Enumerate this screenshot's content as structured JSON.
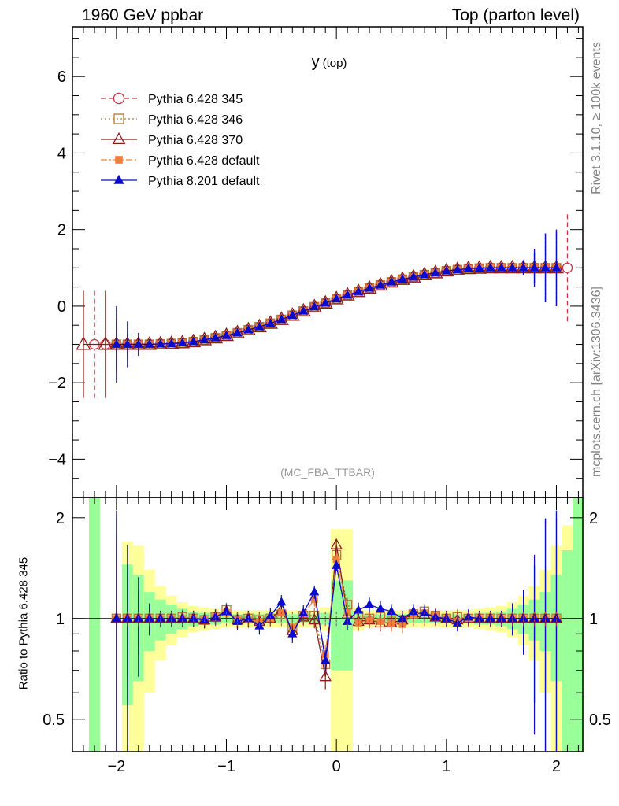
{
  "header": {
    "left": "1960 GeV ppbar",
    "right": "Top (parton level)"
  },
  "side_labels": {
    "rivet": "Rivet 3.1.10, ≥ 100k events",
    "mcplots": "mcplots.cern.ch [arXiv:1306.3436]"
  },
  "chart_data": [
    {
      "type": "line",
      "title": "y (top)",
      "analysis": "(MC_FBA_TTBAR)",
      "xlabel": "",
      "ylabel": "",
      "xlim": [
        -2.4,
        2.24
      ],
      "ylim": [
        -5,
        7.3
      ],
      "x_ticks": [
        -2,
        -1,
        0,
        1,
        2
      ],
      "x_tick_labels": [
        "−2",
        "−1",
        "0",
        "1",
        "2"
      ],
      "y_ticks": [
        -4,
        -2,
        0,
        2,
        4,
        6
      ],
      "y_tick_labels": [
        "−4",
        "−2",
        "0",
        "2",
        "4",
        "6"
      ],
      "legend_position": "top-left",
      "x": [
        -2.3,
        -2.2,
        -2.1,
        -2.0,
        -1.9,
        -1.8,
        -1.7,
        -1.6,
        -1.5,
        -1.4,
        -1.3,
        -1.2,
        -1.1,
        -1.0,
        -0.9,
        -0.8,
        -0.7,
        -0.6,
        -0.5,
        -0.4,
        -0.3,
        -0.2,
        -0.1,
        0.0,
        0.1,
        0.2,
        0.3,
        0.4,
        0.5,
        0.6,
        0.7,
        0.8,
        0.9,
        1.0,
        1.1,
        1.2,
        1.3,
        1.4,
        1.5,
        1.6,
        1.7,
        1.8,
        1.9,
        2.0,
        2.1
      ],
      "series": [
        {
          "name": "Pythia 6.428 345",
          "color": "#cc3344",
          "marker": "open-circle",
          "line": "dashed",
          "values": [
            null,
            -1.0,
            -1.0,
            -1.0,
            -1.0,
            -1.0,
            -1.0,
            -0.99,
            -0.98,
            -0.96,
            -0.93,
            -0.88,
            -0.83,
            -0.77,
            -0.7,
            -0.62,
            -0.54,
            -0.45,
            -0.35,
            -0.24,
            -0.13,
            -0.02,
            0.08,
            0.19,
            0.29,
            0.38,
            0.47,
            0.55,
            0.63,
            0.7,
            0.76,
            0.82,
            0.87,
            0.92,
            0.95,
            0.98,
            0.99,
            1.0,
            1.0,
            1.0,
            1.0,
            1.0,
            1.0,
            1.0,
            1.0
          ],
          "errors": [
            null,
            1.4,
            0.05,
            0.05,
            0.05,
            0.05,
            0.05,
            0.05,
            0.05,
            0.05,
            0.05,
            0.05,
            0.05,
            0.05,
            0.05,
            0.05,
            0.05,
            0.05,
            0.05,
            0.05,
            0.05,
            0.05,
            0.05,
            0.05,
            0.05,
            0.05,
            0.05,
            0.05,
            0.05,
            0.05,
            0.05,
            0.05,
            0.05,
            0.05,
            0.05,
            0.05,
            0.05,
            0.05,
            0.05,
            0.05,
            0.05,
            0.05,
            0.05,
            0.05,
            1.4
          ]
        },
        {
          "name": "Pythia 6.428 346",
          "color": "#b07a36",
          "marker": "open-square",
          "line": "dotted",
          "values": [
            null,
            null,
            null,
            -1.0,
            -1.0,
            -1.0,
            -1.0,
            -0.99,
            -0.98,
            -0.96,
            -0.93,
            -0.88,
            -0.83,
            -0.77,
            -0.7,
            -0.62,
            -0.54,
            -0.45,
            -0.35,
            -0.24,
            -0.13,
            -0.02,
            0.08,
            0.19,
            0.29,
            0.38,
            0.47,
            0.55,
            0.63,
            0.7,
            0.76,
            0.82,
            0.87,
            0.92,
            0.95,
            0.98,
            0.99,
            1.0,
            1.0,
            1.0,
            1.0,
            1.0,
            1.0,
            1.0,
            null
          ],
          "errors": [
            null,
            null,
            null,
            0.9,
            0.4,
            0.2,
            0.1,
            0.05,
            0.05,
            0.05,
            0.05,
            0.05,
            0.05,
            0.05,
            0.05,
            0.05,
            0.05,
            0.05,
            0.05,
            0.05,
            0.05,
            0.05,
            0.05,
            0.05,
            0.05,
            0.05,
            0.05,
            0.05,
            0.05,
            0.05,
            0.05,
            0.05,
            0.05,
            0.05,
            0.05,
            0.05,
            0.05,
            0.05,
            0.05,
            0.1,
            0.2,
            0.4,
            0.9,
            0.9,
            null
          ]
        },
        {
          "name": "Pythia 6.428 370",
          "color": "#8b1a1a",
          "marker": "open-triangle",
          "line": "solid",
          "values": [
            -1.0,
            null,
            -1.0,
            -1.0,
            -1.0,
            -1.0,
            -1.0,
            -0.99,
            -0.98,
            -0.96,
            -0.93,
            -0.88,
            -0.83,
            -0.77,
            -0.7,
            -0.62,
            -0.54,
            -0.45,
            -0.35,
            -0.24,
            -0.13,
            -0.02,
            0.08,
            0.19,
            0.29,
            0.38,
            0.47,
            0.55,
            0.63,
            0.7,
            0.76,
            0.82,
            0.87,
            0.92,
            0.95,
            0.98,
            0.99,
            1.0,
            1.0,
            1.0,
            1.0,
            1.0,
            1.0,
            1.0,
            null
          ],
          "errors": [
            1.4,
            null,
            1.4,
            0.6,
            0.3,
            0.15,
            0.05,
            0.05,
            0.05,
            0.05,
            0.05,
            0.05,
            0.05,
            0.05,
            0.05,
            0.05,
            0.05,
            0.05,
            0.05,
            0.05,
            0.05,
            0.05,
            0.05,
            0.05,
            0.05,
            0.05,
            0.05,
            0.05,
            0.05,
            0.05,
            0.05,
            0.05,
            0.05,
            0.05,
            0.05,
            0.05,
            0.05,
            0.05,
            0.05,
            0.1,
            0.2,
            0.4,
            0.9,
            1.0,
            null
          ]
        },
        {
          "name": "Pythia 6.428 default",
          "color": "#f07f3c",
          "marker": "filled-square",
          "line": "dashdot",
          "values": [
            null,
            null,
            null,
            -1.0,
            -1.0,
            -1.0,
            -1.0,
            -0.99,
            -0.98,
            -0.96,
            -0.93,
            -0.88,
            -0.83,
            -0.77,
            -0.7,
            -0.62,
            -0.54,
            -0.45,
            -0.35,
            -0.24,
            -0.13,
            -0.02,
            0.08,
            0.19,
            0.29,
            0.38,
            0.47,
            0.55,
            0.63,
            0.7,
            0.76,
            0.82,
            0.87,
            0.92,
            0.95,
            0.98,
            0.99,
            1.0,
            1.0,
            1.0,
            1.0,
            1.0,
            1.0,
            1.0,
            null
          ],
          "errors": [
            null,
            null,
            null,
            0.7,
            0.3,
            0.15,
            0.05,
            0.05,
            0.05,
            0.05,
            0.05,
            0.05,
            0.05,
            0.05,
            0.05,
            0.05,
            0.05,
            0.05,
            0.05,
            0.05,
            0.05,
            0.05,
            0.05,
            0.05,
            0.05,
            0.05,
            0.05,
            0.05,
            0.05,
            0.05,
            0.05,
            0.05,
            0.05,
            0.05,
            0.05,
            0.05,
            0.05,
            0.05,
            0.05,
            0.1,
            0.2,
            0.4,
            0.9,
            0.9,
            null
          ]
        },
        {
          "name": "Pythia 8.201 default",
          "color": "#0a0acc",
          "marker": "filled-triangle",
          "line": "solid",
          "values": [
            null,
            null,
            null,
            -1.0,
            -1.0,
            -1.0,
            -1.0,
            -0.99,
            -0.98,
            -0.96,
            -0.93,
            -0.88,
            -0.83,
            -0.77,
            -0.7,
            -0.62,
            -0.54,
            -0.45,
            -0.35,
            -0.24,
            -0.13,
            -0.02,
            0.08,
            0.19,
            0.29,
            0.38,
            0.47,
            0.55,
            0.63,
            0.7,
            0.76,
            0.82,
            0.87,
            0.92,
            0.95,
            0.98,
            0.99,
            1.0,
            1.0,
            1.0,
            1.0,
            1.0,
            1.0,
            1.0,
            null
          ],
          "errors": [
            null,
            null,
            null,
            1.0,
            0.6,
            0.3,
            0.1,
            0.05,
            0.05,
            0.05,
            0.05,
            0.05,
            0.05,
            0.05,
            0.05,
            0.05,
            0.05,
            0.05,
            0.05,
            0.05,
            0.05,
            0.05,
            0.05,
            0.05,
            0.05,
            0.05,
            0.05,
            0.05,
            0.05,
            0.05,
            0.05,
            0.05,
            0.05,
            0.05,
            0.05,
            0.05,
            0.05,
            0.05,
            0.05,
            0.1,
            0.2,
            0.5,
            0.9,
            1.0,
            null
          ]
        }
      ]
    },
    {
      "type": "line",
      "title": "",
      "ylabel": "Ratio to Pythia 6.428 345",
      "yscale": "log",
      "ylim": [
        0.4,
        2.3
      ],
      "y_ticks": [
        0.5,
        1,
        2
      ],
      "y_tick_labels": [
        "0.5",
        "1",
        "2"
      ],
      "reference_line": 1,
      "bands": {
        "x_low": [
          -2.25,
          -2.15,
          -2.05,
          -1.95,
          -1.85,
          -1.75,
          -1.65,
          -1.55,
          -1.45,
          -1.35,
          -1.25,
          -1.15,
          -1.05,
          -0.95,
          -0.85,
          -0.75,
          -0.65,
          -0.55,
          -0.45,
          -0.35,
          -0.25,
          -0.15,
          -0.05,
          0.05,
          0.15,
          0.25,
          0.35,
          0.45,
          0.55,
          0.65,
          0.75,
          0.85,
          0.95,
          1.05,
          1.15,
          1.25,
          1.35,
          1.45,
          1.55,
          1.65,
          1.75,
          1.85,
          1.95,
          2.05,
          2.15
        ],
        "yellow_half_width": [
          2.0,
          0.0,
          0.0,
          0.7,
          0.65,
          0.4,
          0.25,
          0.17,
          0.12,
          0.09,
          0.08,
          0.07,
          0.06,
          0.06,
          0.06,
          0.06,
          0.06,
          0.06,
          0.06,
          0.06,
          0.06,
          0.08,
          0.85,
          0.85,
          0.08,
          0.06,
          0.06,
          0.06,
          0.06,
          0.06,
          0.06,
          0.06,
          0.06,
          0.06,
          0.06,
          0.07,
          0.08,
          0.09,
          0.12,
          0.17,
          0.25,
          0.4,
          0.65,
          0.9,
          2.0
        ],
        "green_half_width": [
          2.0,
          0.0,
          0.0,
          0.45,
          0.35,
          0.2,
          0.14,
          0.1,
          0.07,
          0.05,
          0.04,
          0.04,
          0.03,
          0.03,
          0.03,
          0.03,
          0.03,
          0.03,
          0.03,
          0.03,
          0.03,
          0.04,
          0.3,
          0.3,
          0.04,
          0.03,
          0.03,
          0.03,
          0.03,
          0.03,
          0.03,
          0.03,
          0.03,
          0.03,
          0.03,
          0.04,
          0.04,
          0.05,
          0.07,
          0.1,
          0.14,
          0.2,
          0.35,
          0.6,
          2.0
        ]
      },
      "series": [
        {
          "name": "Pythia 6.428 346",
          "values": [
            null,
            null,
            null,
            1.0,
            1.0,
            1.0,
            1.0,
            1.0,
            1.0,
            1.01,
            1.0,
            0.99,
            1.01,
            1.06,
            0.99,
            1.0,
            0.99,
            1.0,
            1.03,
            0.94,
            1.02,
            1.02,
            0.73,
            1.55,
            1.1,
            1.02,
            1.0,
            1.01,
            0.98,
            0.99,
            1.03,
            1.05,
            1.02,
            1.0,
            1.01,
            1.0,
            1.0,
            1.0,
            1.0,
            1.0,
            1.0,
            1.0,
            1.0,
            1.0,
            null
          ]
        },
        {
          "name": "Pythia 6.428 370",
          "values": [
            null,
            null,
            null,
            1.0,
            1.0,
            1.0,
            1.0,
            1.0,
            1.0,
            1.0,
            1.0,
            0.99,
            1.01,
            1.05,
            0.99,
            1.0,
            0.98,
            1.0,
            1.06,
            0.92,
            1.01,
            0.99,
            0.67,
            1.66,
            1.03,
            0.98,
            0.99,
            0.97,
            0.97,
            0.99,
            1.04,
            1.03,
            1.01,
            1.0,
            0.99,
            1.0,
            1.0,
            1.0,
            1.0,
            1.0,
            1.0,
            1.0,
            1.0,
            1.0,
            null
          ]
        },
        {
          "name": "Pythia 6.428 default",
          "values": [
            null,
            null,
            null,
            1.0,
            1.0,
            1.0,
            1.0,
            1.0,
            1.0,
            1.0,
            1.0,
            0.99,
            1.01,
            1.04,
            0.99,
            0.99,
            0.98,
            1.0,
            1.04,
            0.94,
            1.03,
            1.14,
            0.78,
            1.5,
            1.04,
            0.97,
            0.99,
            0.98,
            0.97,
            0.96,
            1.03,
            1.04,
            1.02,
            1.0,
            0.98,
            1.0,
            1.0,
            1.0,
            1.0,
            1.0,
            1.0,
            1.0,
            1.0,
            1.0,
            null
          ]
        },
        {
          "name": "Pythia 8.201 default",
          "values": [
            null,
            null,
            null,
            1.0,
            1.0,
            1.0,
            1.0,
            1.0,
            1.0,
            1.0,
            1.0,
            0.99,
            1.01,
            1.05,
            0.98,
            1.0,
            0.95,
            1.02,
            1.12,
            0.9,
            1.04,
            1.2,
            0.75,
            1.44,
            0.98,
            1.06,
            1.1,
            1.07,
            1.05,
            1.0,
            1.05,
            1.04,
            1.01,
            1.0,
            0.97,
            1.01,
            1.0,
            1.0,
            1.0,
            1.0,
            1.0,
            1.0,
            1.0,
            1.0,
            null
          ]
        }
      ]
    }
  ]
}
